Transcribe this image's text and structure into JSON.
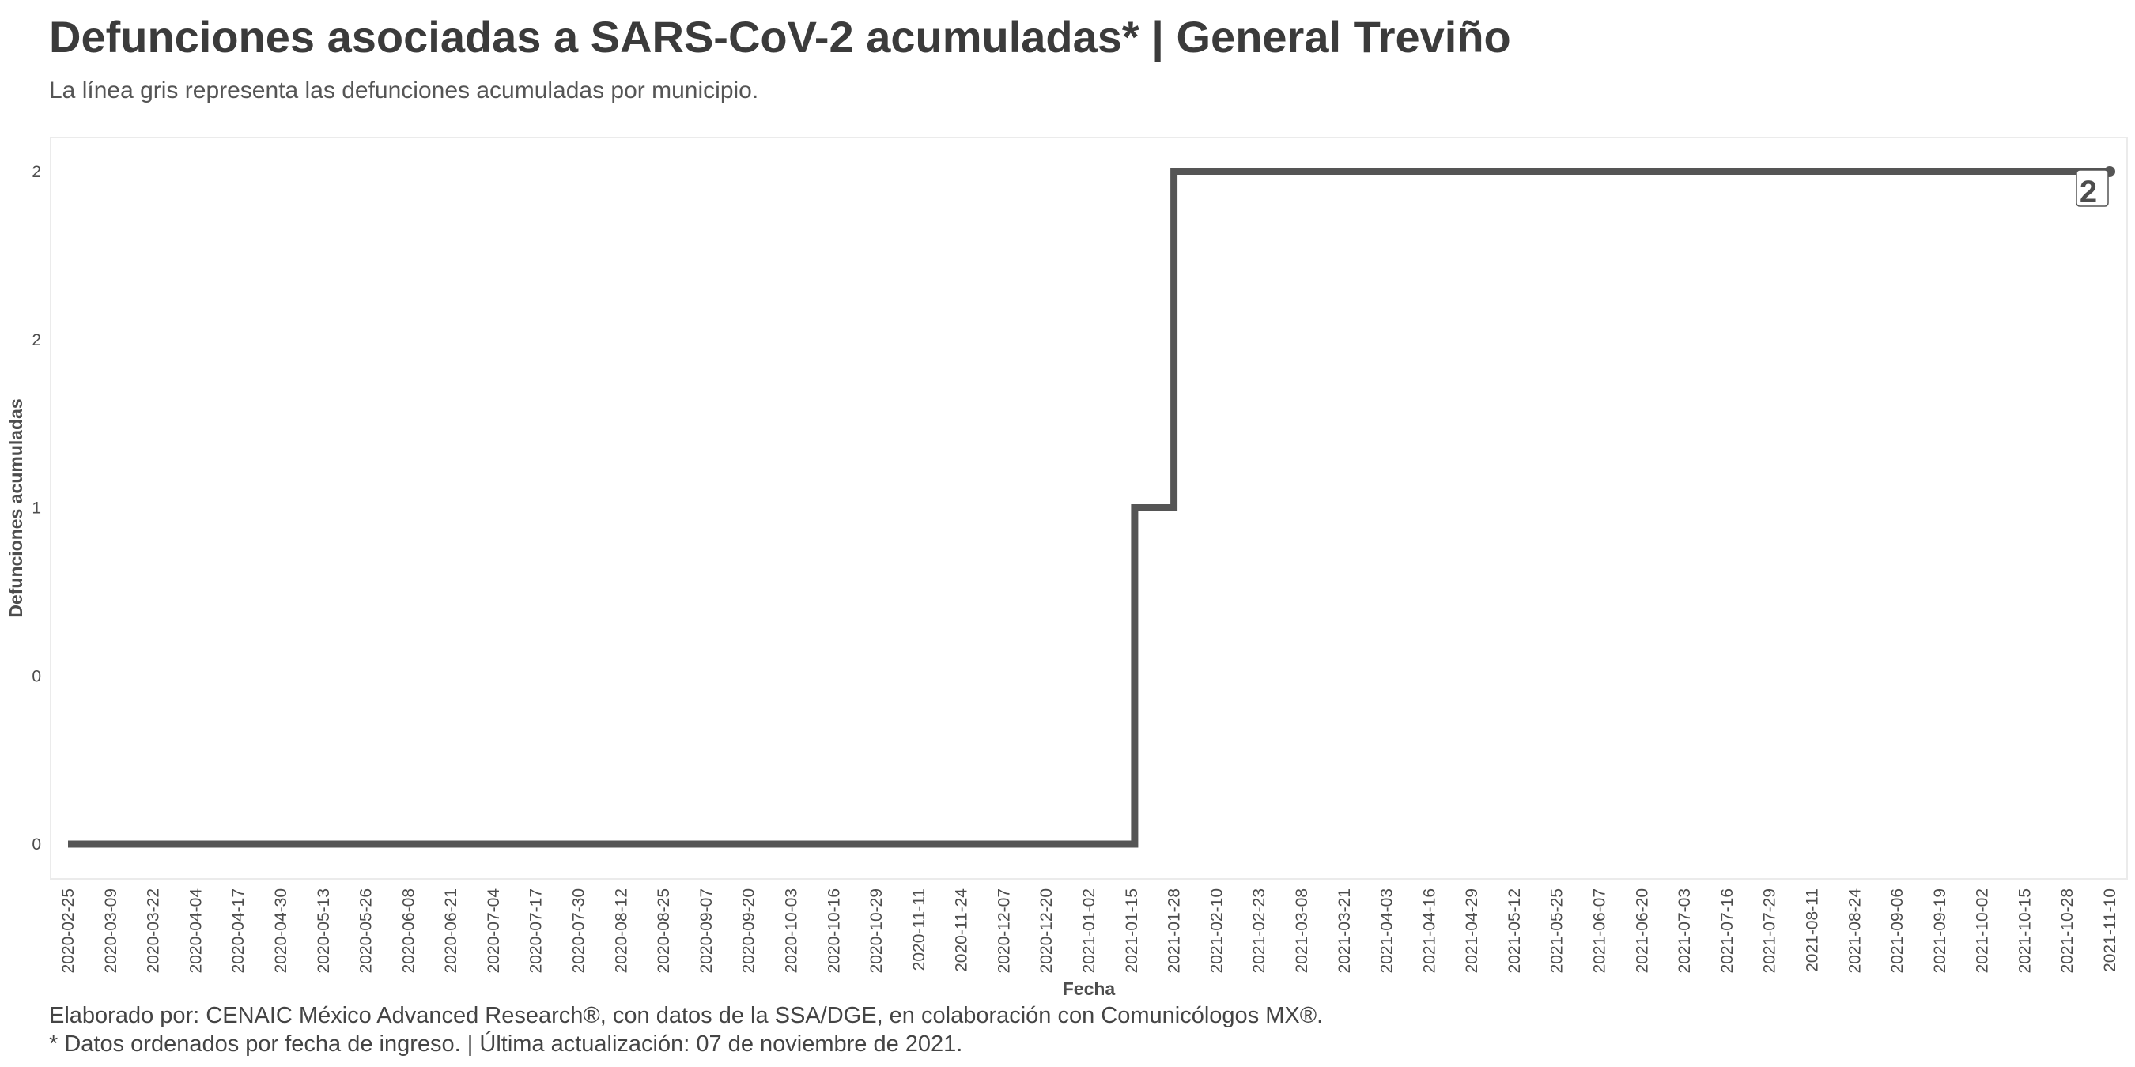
{
  "header": {
    "title": "Defunciones asociadas a SARS-CoV-2 acumuladas* | General Treviño",
    "subtitle": "La línea gris representa las defunciones acumuladas por municipio."
  },
  "footer": {
    "line1": "Elaborado por: CENAIC México Advanced Research®, con datos de la SSA/DGE, en colaboración con Comunicólogos MX®.",
    "line2": "* Datos ordenados por fecha de ingreso. | Última actualización: 07 de noviembre de 2021."
  },
  "chart_data": {
    "type": "line",
    "step": true,
    "title": "Defunciones asociadas a SARS-CoV-2 acumuladas* | General Treviño",
    "subtitle": "La línea gris representa las defunciones acumuladas por municipio.",
    "xlabel": "Fecha",
    "ylabel": "Defunciones acumuladas",
    "xlim": [
      "2020-02-25",
      "2021-11-10"
    ],
    "ylim": [
      0,
      2
    ],
    "x_ticks": [
      "2020-02-25",
      "2020-03-09",
      "2020-03-22",
      "2020-04-04",
      "2020-04-17",
      "2020-04-30",
      "2020-05-13",
      "2020-05-26",
      "2020-06-08",
      "2020-06-21",
      "2020-07-04",
      "2020-07-17",
      "2020-07-30",
      "2020-08-12",
      "2020-08-25",
      "2020-09-07",
      "2020-09-20",
      "2020-10-03",
      "2020-10-16",
      "2020-10-29",
      "2020-11-11",
      "2020-11-24",
      "2020-12-07",
      "2020-12-20",
      "2021-01-02",
      "2021-01-15",
      "2021-01-28",
      "2021-02-10",
      "2021-02-23",
      "2021-03-08",
      "2021-03-21",
      "2021-04-03",
      "2021-04-16",
      "2021-04-29",
      "2021-05-12",
      "2021-05-25",
      "2021-06-07",
      "2021-06-20",
      "2021-07-03",
      "2021-07-16",
      "2021-07-29",
      "2021-08-11",
      "2021-08-24",
      "2021-09-06",
      "2021-09-19",
      "2021-10-02",
      "2021-10-15",
      "2021-10-28",
      "2021-11-10"
    ],
    "y_ticks": [
      {
        "value": 0,
        "label": "0"
      },
      {
        "value": 0.5,
        "label": "0"
      },
      {
        "value": 1,
        "label": "1"
      },
      {
        "value": 1.5,
        "label": "2"
      },
      {
        "value": 2,
        "label": "2"
      }
    ],
    "series": [
      {
        "color": "#555555",
        "points": [
          {
            "x": "2020-02-25",
            "y": 0
          },
          {
            "x": "2021-01-16",
            "y": 0
          },
          {
            "x": "2021-01-16",
            "y": 1
          },
          {
            "x": "2021-01-28",
            "y": 1
          },
          {
            "x": "2021-01-28",
            "y": 2
          },
          {
            "x": "2021-11-10",
            "y": 2
          }
        ]
      }
    ],
    "end_label": "2",
    "grid": false,
    "legend": "none"
  }
}
